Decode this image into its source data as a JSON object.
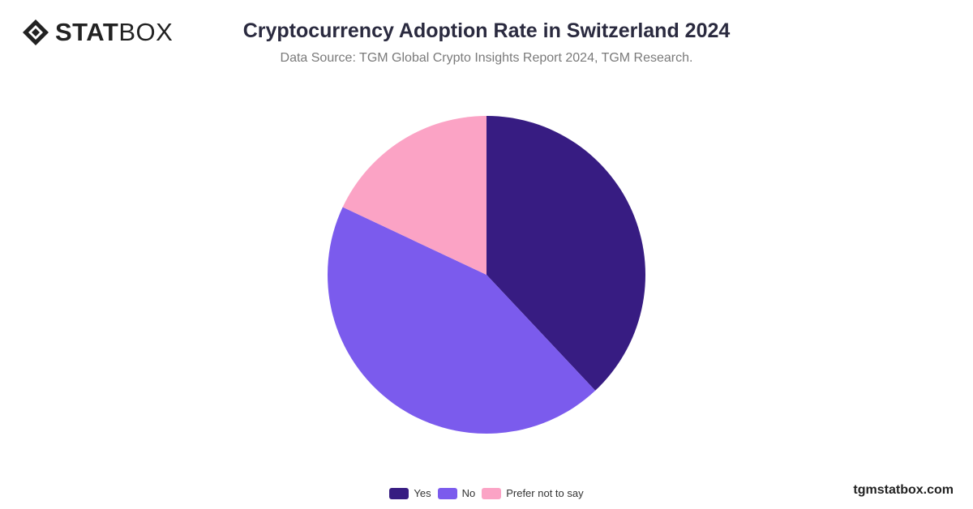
{
  "brand": {
    "name_bold": "STAT",
    "name_light": "BOX",
    "watermark": "tgmstatbox.com"
  },
  "header": {
    "title": "Cryptocurrency Adoption Rate in Switzerland 2024",
    "subtitle": "Data Source: TGM Global Crypto Insights Report 2024, TGM Research."
  },
  "chart_data": {
    "type": "pie",
    "title": "Cryptocurrency Adoption Rate in Switzerland 2024",
    "legend_position": "bottom",
    "start_angle": "top, clockwise",
    "slices": [
      {
        "label": "Yes",
        "value": 38,
        "color": "#371c82"
      },
      {
        "label": "No",
        "value": 44,
        "color": "#7b5bed"
      },
      {
        "label": "Prefer not to say",
        "value": 18,
        "color": "#fba3c5"
      }
    ]
  }
}
